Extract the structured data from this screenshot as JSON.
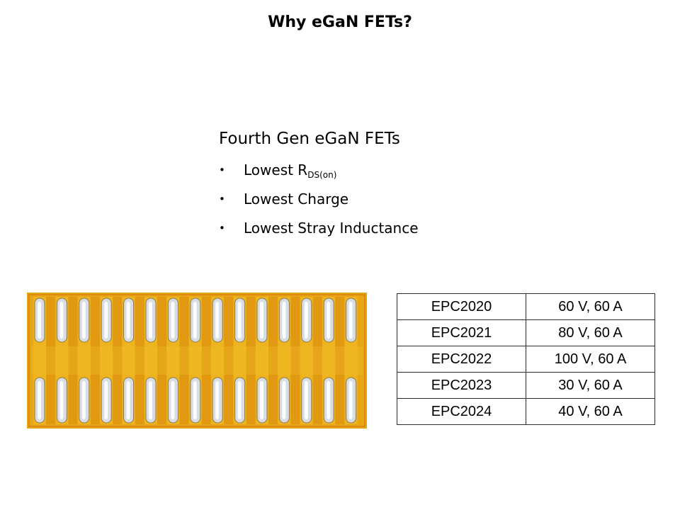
{
  "slide": {
    "title": "Why eGaN FETs?"
  },
  "content": {
    "heading": "Fourth Gen eGaN FETs",
    "bullets": [
      {
        "text": "Lowest R",
        "sub": "DS(on)"
      },
      {
        "text": "Lowest Charge",
        "sub": ""
      },
      {
        "text": "Lowest Stray Inductance",
        "sub": ""
      }
    ],
    "bullet_glyph": "•"
  },
  "die_photo": {
    "description_icon": "gan-die-photo-icon",
    "colors": {
      "base": "#e8a614",
      "stripe_dark": "#d98a10",
      "stripe_light": "#f2c02a",
      "bump": "#d7dde3",
      "bump_highlight": "#ffffff"
    }
  },
  "table": {
    "rows": [
      {
        "part": "EPC2020",
        "rating": "60 V, 60 A"
      },
      {
        "part": "EPC2021",
        "rating": "80 V, 60 A"
      },
      {
        "part": "EPC2022",
        "rating": "100 V, 60 A"
      },
      {
        "part": "EPC2023",
        "rating": "30 V, 60 A"
      },
      {
        "part": "EPC2024",
        "rating": "40 V, 60 A"
      }
    ]
  }
}
